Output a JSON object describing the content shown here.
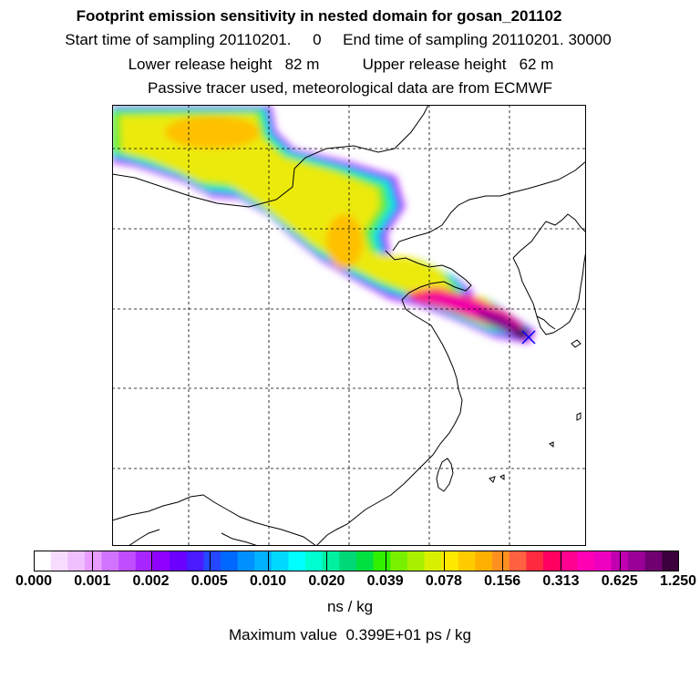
{
  "header": {
    "title": "Footprint emission sensitivity in nested domain for gosan_201102",
    "sampling": "Start time of sampling 20110201.     0     End time of sampling 20110201. 30000",
    "release": "Lower release height   82 m          Upper release height   62 m",
    "tracer": "Passive tracer used, meteorological data are from ECMWF"
  },
  "colorbar": {
    "colors": [
      "#ffffff",
      "#f7dcff",
      "#efbfff",
      "#e89cff",
      "#d273ff",
      "#c04dff",
      "#a726ff",
      "#8f00ff",
      "#6c00ff",
      "#4a1bff",
      "#2447ff",
      "#0067ff",
      "#0090ff",
      "#00b2ff",
      "#00d8ff",
      "#00ffff",
      "#00ffd0",
      "#00f0a0",
      "#00d878",
      "#00e040",
      "#30f000",
      "#78f000",
      "#a8f000",
      "#d8f000",
      "#ffe800",
      "#ffcc00",
      "#ffb000",
      "#ff9020",
      "#ff6040",
      "#ff2a40",
      "#ff0060",
      "#ff0090",
      "#ff00b4",
      "#ee00c0",
      "#c000b0",
      "#9a0098",
      "#700070",
      "#3c003c"
    ],
    "ticks": [
      "0.000",
      "0.001",
      "0.002",
      "0.005",
      "0.010",
      "0.020",
      "0.039",
      "0.078",
      "0.156",
      "0.313",
      "0.625",
      "1.250"
    ],
    "units": "ns / kg"
  },
  "footer": {
    "maximum": "Maximum value  0.399E+01 ps / kg"
  }
}
